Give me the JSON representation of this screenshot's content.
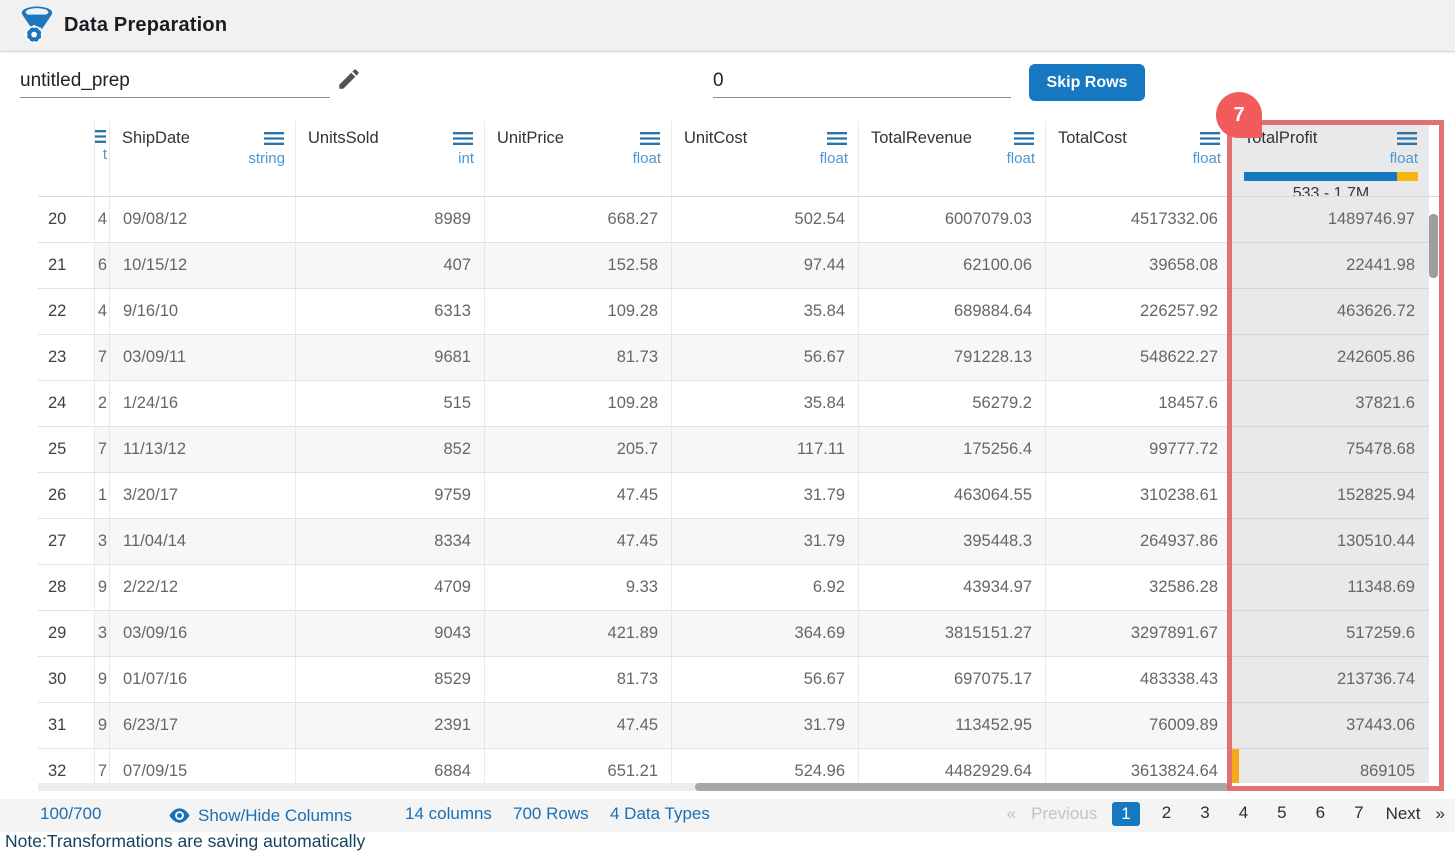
{
  "header": {
    "title": "Data Preparation"
  },
  "toolbar": {
    "prep_name": "untitled_prep",
    "skip_rows_value": "0",
    "skip_rows_button": "Skip Rows"
  },
  "annotation": {
    "badge": "7",
    "highlighted_column": "TotalProfit"
  },
  "table": {
    "clipped_column": {
      "type_fragment": "t"
    },
    "columns": [
      {
        "name": "ShipDate",
        "type": "string"
      },
      {
        "name": "UnitsSold",
        "type": "int"
      },
      {
        "name": "UnitPrice",
        "type": "float"
      },
      {
        "name": "UnitCost",
        "type": "float"
      },
      {
        "name": "TotalRevenue",
        "type": "float"
      },
      {
        "name": "TotalCost",
        "type": "float"
      },
      {
        "name": "TotalProfit",
        "type": "float",
        "highlighted": true,
        "range": "533 - 1.7M"
      }
    ],
    "rows": [
      {
        "n": "20",
        "clip": "4",
        "cells": [
          "09/08/12",
          "8989",
          "668.27",
          "502.54",
          "6007079.03",
          "4517332.06",
          "1489746.97"
        ],
        "marker": false
      },
      {
        "n": "21",
        "clip": "6",
        "cells": [
          "10/15/12",
          "407",
          "152.58",
          "97.44",
          "62100.06",
          "39658.08",
          "22441.98"
        ],
        "marker": false
      },
      {
        "n": "22",
        "clip": "4",
        "cells": [
          "9/16/10",
          "6313",
          "109.28",
          "35.84",
          "689884.64",
          "226257.92",
          "463626.72"
        ],
        "marker": false
      },
      {
        "n": "23",
        "clip": "7",
        "cells": [
          "03/09/11",
          "9681",
          "81.73",
          "56.67",
          "791228.13",
          "548622.27",
          "242605.86"
        ],
        "marker": false
      },
      {
        "n": "24",
        "clip": "2",
        "cells": [
          "1/24/16",
          "515",
          "109.28",
          "35.84",
          "56279.2",
          "18457.6",
          "37821.6"
        ],
        "marker": false
      },
      {
        "n": "25",
        "clip": "7",
        "cells": [
          "11/13/12",
          "852",
          "205.7",
          "117.11",
          "175256.4",
          "99777.72",
          "75478.68"
        ],
        "marker": false
      },
      {
        "n": "26",
        "clip": "1",
        "cells": [
          "3/20/17",
          "9759",
          "47.45",
          "31.79",
          "463064.55",
          "310238.61",
          "152825.94"
        ],
        "marker": false
      },
      {
        "n": "27",
        "clip": "3",
        "cells": [
          "11/04/14",
          "8334",
          "47.45",
          "31.79",
          "395448.3",
          "264937.86",
          "130510.44"
        ],
        "marker": false
      },
      {
        "n": "28",
        "clip": "9",
        "cells": [
          "2/22/12",
          "4709",
          "9.33",
          "6.92",
          "43934.97",
          "32586.28",
          "11348.69"
        ],
        "marker": false
      },
      {
        "n": "29",
        "clip": "3",
        "cells": [
          "03/09/16",
          "9043",
          "421.89",
          "364.69",
          "3815151.27",
          "3297891.67",
          "517259.6"
        ],
        "marker": false
      },
      {
        "n": "30",
        "clip": "9",
        "cells": [
          "01/07/16",
          "8529",
          "81.73",
          "56.67",
          "697075.17",
          "483338.43",
          "213736.74"
        ],
        "marker": false
      },
      {
        "n": "31",
        "clip": "9",
        "cells": [
          "6/23/17",
          "2391",
          "47.45",
          "31.79",
          "113452.95",
          "76009.89",
          "37443.06"
        ],
        "marker": false
      },
      {
        "n": "32",
        "clip": "7",
        "cells": [
          "07/09/15",
          "6884",
          "651.21",
          "524.96",
          "4482929.64",
          "3613824.64",
          "869105"
        ],
        "marker": true
      }
    ]
  },
  "footer": {
    "progress": "100/700",
    "show_hide": "Show/Hide Columns",
    "columns_count": "14 columns",
    "rows_count": "700 Rows",
    "types_count": "4 Data Types",
    "pagination": {
      "prev_arrow": "«",
      "previous": "Previous",
      "pages": [
        "1",
        "2",
        "3",
        "4",
        "5",
        "6",
        "7"
      ],
      "active_page": "1",
      "next": "Next",
      "next_arrow": "»"
    }
  },
  "note": "Note:Transformations are saving automatically",
  "colors": {
    "accent_blue": "#1778c2",
    "type_label_blue": "#4d96d2",
    "footer_link_blue": "#1b6fb5",
    "highlight_red": "#e06262",
    "badge_red": "#f15b5b",
    "marker_orange": "#f7a81b",
    "bar_yellow": "#f5b50a",
    "profit_column_gray": "#e9e9e9"
  }
}
